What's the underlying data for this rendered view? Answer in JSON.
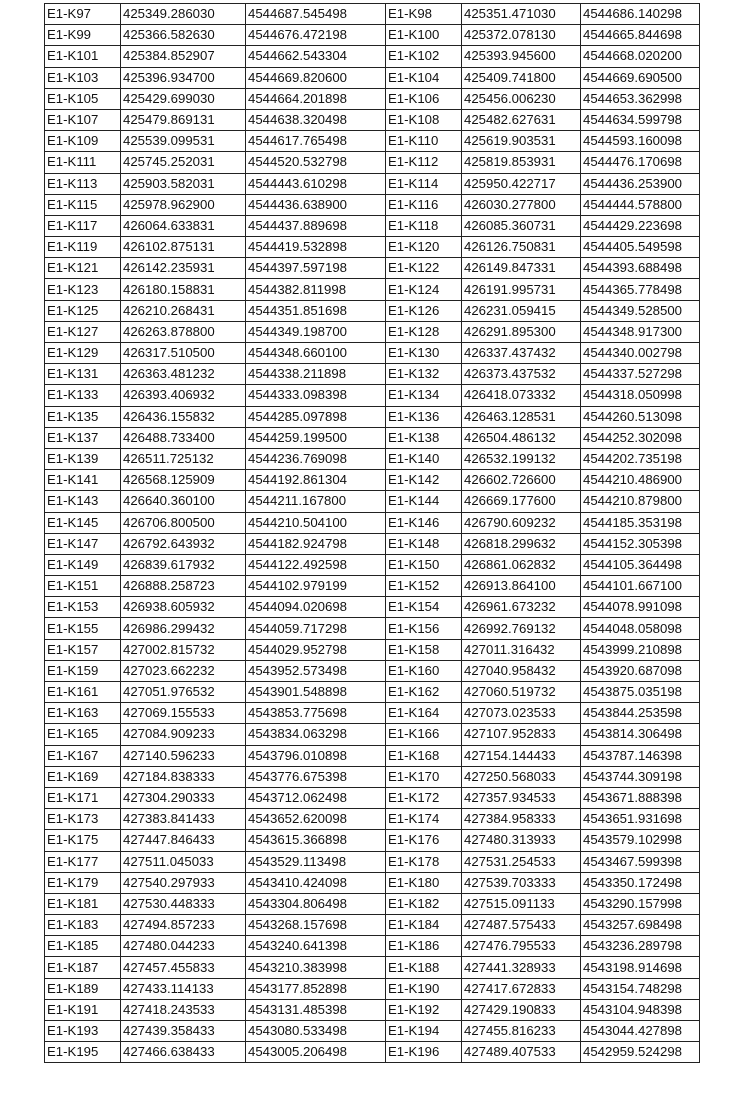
{
  "table": {
    "rows": [
      [
        "E1-K97",
        "425349.286030",
        "4544687.545498",
        "E1-K98",
        "425351.471030",
        "4544686.140298"
      ],
      [
        "E1-K99",
        "425366.582630",
        "4544676.472198",
        "E1-K100",
        "425372.078130",
        "4544665.844698"
      ],
      [
        "E1-K101",
        "425384.852907",
        "4544662.543304",
        "E1-K102",
        "425393.945600",
        "4544668.020200"
      ],
      [
        "E1-K103",
        "425396.934700",
        "4544669.820600",
        "E1-K104",
        "425409.741800",
        "4544669.690500"
      ],
      [
        "E1-K105",
        "425429.699030",
        "4544664.201898",
        "E1-K106",
        "425456.006230",
        "4544653.362998"
      ],
      [
        "E1-K107",
        "425479.869131",
        "4544638.320498",
        "E1-K108",
        "425482.627631",
        "4544634.599798"
      ],
      [
        "E1-K109",
        "425539.099531",
        "4544617.765498",
        "E1-K110",
        "425619.903531",
        "4544593.160098"
      ],
      [
        "E1-K111",
        "425745.252031",
        "4544520.532798",
        "E1-K112",
        "425819.853931",
        "4544476.170698"
      ],
      [
        "E1-K113",
        "425903.582031",
        "4544443.610298",
        "E1-K114",
        "425950.422717",
        "4544436.253900"
      ],
      [
        "E1-K115",
        "425978.962900",
        "4544436.638900",
        "E1-K116",
        "426030.277800",
        "4544444.578800"
      ],
      [
        "E1-K117",
        "426064.633831",
        "4544437.889698",
        "E1-K118",
        "426085.360731",
        "4544429.223698"
      ],
      [
        "E1-K119",
        "426102.875131",
        "4544419.532898",
        "E1-K120",
        "426126.750831",
        "4544405.549598"
      ],
      [
        "E1-K121",
        "426142.235931",
        "4544397.597198",
        "E1-K122",
        "426149.847331",
        "4544393.688498"
      ],
      [
        "E1-K123",
        "426180.158831",
        "4544382.811998",
        "E1-K124",
        "426191.995731",
        "4544365.778498"
      ],
      [
        "E1-K125",
        "426210.268431",
        "4544351.851698",
        "E1-K126",
        "426231.059415",
        "4544349.528500"
      ],
      [
        "E1-K127",
        "426263.878800",
        "4544349.198700",
        "E1-K128",
        "426291.895300",
        "4544348.917300"
      ],
      [
        "E1-K129",
        "426317.510500",
        "4544348.660100",
        "E1-K130",
        "426337.437432",
        "4544340.002798"
      ],
      [
        "E1-K131",
        "426363.481232",
        "4544338.211898",
        "E1-K132",
        "426373.437532",
        "4544337.527298"
      ],
      [
        "E1-K133",
        "426393.406932",
        "4544333.098398",
        "E1-K134",
        "426418.073332",
        "4544318.050998"
      ],
      [
        "E1-K135",
        "426436.155832",
        "4544285.097898",
        "E1-K136",
        "426463.128531",
        "4544260.513098"
      ],
      [
        "E1-K137",
        "426488.733400",
        "4544259.199500",
        "E1-K138",
        "426504.486132",
        "4544252.302098"
      ],
      [
        "E1-K139",
        "426511.725132",
        "4544236.769098",
        "E1-K140",
        "426532.199132",
        "4544202.735198"
      ],
      [
        "E1-K141",
        "426568.125909",
        "4544192.861304",
        "E1-K142",
        "426602.726600",
        "4544210.486900"
      ],
      [
        "E1-K143",
        "426640.360100",
        "4544211.167800",
        "E1-K144",
        "426669.177600",
        "4544210.879800"
      ],
      [
        "E1-K145",
        "426706.800500",
        "4544210.504100",
        "E1-K146",
        "426790.609232",
        "4544185.353198"
      ],
      [
        "E1-K147",
        "426792.643932",
        "4544182.924798",
        "E1-K148",
        "426818.299632",
        "4544152.305398"
      ],
      [
        "E1-K149",
        "426839.617932",
        "4544122.492598",
        "E1-K150",
        "426861.062832",
        "4544105.364498"
      ],
      [
        "E1-K151",
        "426888.258723",
        "4544102.979199",
        "E1-K152",
        "426913.864100",
        "4544101.667100"
      ],
      [
        "E1-K153",
        "426938.605932",
        "4544094.020698",
        "E1-K154",
        "426961.673232",
        "4544078.991098"
      ],
      [
        "E1-K155",
        "426986.299432",
        "4544059.717298",
        "E1-K156",
        "426992.769132",
        "4544048.058098"
      ],
      [
        "E1-K157",
        "427002.815732",
        "4544029.952798",
        "E1-K158",
        "427011.316432",
        "4543999.210898"
      ],
      [
        "E1-K159",
        "427023.662232",
        "4543952.573498",
        "E1-K160",
        "427040.958432",
        "4543920.687098"
      ],
      [
        "E1-K161",
        "427051.976532",
        "4543901.548898",
        "E1-K162",
        "427060.519732",
        "4543875.035198"
      ],
      [
        "E1-K163",
        "427069.155533",
        "4543853.775698",
        "E1-K164",
        "427073.023533",
        "4543844.253598"
      ],
      [
        "E1-K165",
        "427084.909233",
        "4543834.063298",
        "E1-K166",
        "427107.952833",
        "4543814.306498"
      ],
      [
        "E1-K167",
        "427140.596233",
        "4543796.010898",
        "E1-K168",
        "427154.144433",
        "4543787.146398"
      ],
      [
        "E1-K169",
        "427184.838333",
        "4543776.675398",
        "E1-K170",
        "427250.568033",
        "4543744.309198"
      ],
      [
        "E1-K171",
        "427304.290333",
        "4543712.062498",
        "E1-K172",
        "427357.934533",
        "4543671.888398"
      ],
      [
        "E1-K173",
        "427383.841433",
        "4543652.620098",
        "E1-K174",
        "427384.958333",
        "4543651.931698"
      ],
      [
        "E1-K175",
        "427447.846433",
        "4543615.366898",
        "E1-K176",
        "427480.313933",
        "4543579.102998"
      ],
      [
        "E1-K177",
        "427511.045033",
        "4543529.113498",
        "E1-K178",
        "427531.254533",
        "4543467.599398"
      ],
      [
        "E1-K179",
        "427540.297933",
        "4543410.424098",
        "E1-K180",
        "427539.703333",
        "4543350.172498"
      ],
      [
        "E1-K181",
        "427530.448333",
        "4543304.806498",
        "E1-K182",
        "427515.091133",
        "4543290.157998"
      ],
      [
        "E1-K183",
        "427494.857233",
        "4543268.157698",
        "E1-K184",
        "427487.575433",
        "4543257.698498"
      ],
      [
        "E1-K185",
        "427480.044233",
        "4543240.641398",
        "E1-K186",
        "427476.795533",
        "4543236.289798"
      ],
      [
        "E1-K187",
        "427457.455833",
        "4543210.383998",
        "E1-K188",
        "427441.328933",
        "4543198.914698"
      ],
      [
        "E1-K189",
        "427433.114133",
        "4543177.852898",
        "E1-K190",
        "427417.672833",
        "4543154.748298"
      ],
      [
        "E1-K191",
        "427418.243533",
        "4543131.485398",
        "E1-K192",
        "427429.190833",
        "4543104.948398"
      ],
      [
        "E1-K193",
        "427439.358433",
        "4543080.533498",
        "E1-K194",
        "427455.816233",
        "4543044.427898"
      ],
      [
        "E1-K195",
        "427466.638433",
        "4543005.206498",
        "E1-K196",
        "427489.407533",
        "4542959.524298"
      ]
    ]
  }
}
